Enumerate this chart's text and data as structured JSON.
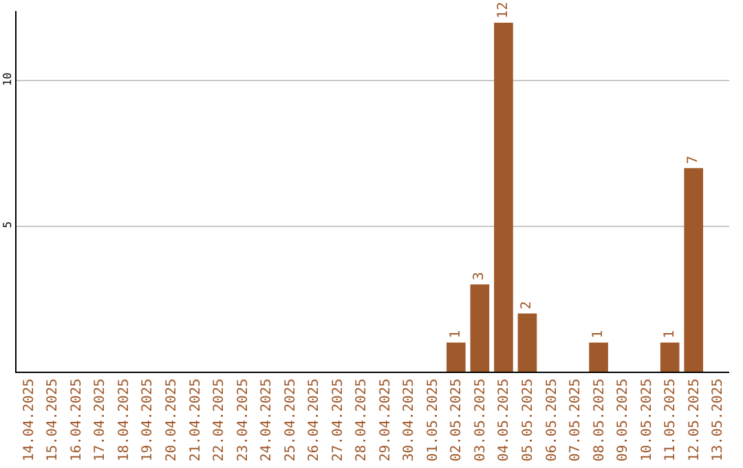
{
  "chart_data": {
    "type": "bar",
    "categories": [
      "14.04.2025",
      "15.04.2025",
      "16.04.2025",
      "17.04.2025",
      "18.04.2025",
      "19.04.2025",
      "20.04.2025",
      "21.04.2025",
      "22.04.2025",
      "23.04.2025",
      "24.04.2025",
      "25.04.2025",
      "26.04.2025",
      "27.04.2025",
      "28.04.2025",
      "29.04.2025",
      "30.04.2025",
      "01.05.2025",
      "02.05.2025",
      "03.05.2025",
      "04.05.2025",
      "05.05.2025",
      "06.05.2025",
      "07.05.2025",
      "08.05.2025",
      "09.05.2025",
      "10.05.2025",
      "11.05.2025",
      "12.05.2025",
      "13.05.2025"
    ],
    "values": [
      0,
      0,
      0,
      0,
      0,
      0,
      0,
      0,
      0,
      0,
      0,
      0,
      0,
      0,
      0,
      0,
      0,
      0,
      1,
      3,
      12,
      2,
      0,
      0,
      1,
      0,
      0,
      1,
      7,
      0
    ],
    "value_labels": [
      null,
      null,
      null,
      null,
      null,
      null,
      null,
      null,
      null,
      null,
      null,
      null,
      null,
      null,
      null,
      null,
      null,
      null,
      "1",
      "3",
      "12",
      "2",
      null,
      null,
      "1",
      null,
      null,
      "1",
      "7",
      null
    ],
    "color": "#a0592a",
    "ylim": [
      0,
      12.4
    ],
    "yticks": [
      5,
      10
    ],
    "grid": "y"
  }
}
